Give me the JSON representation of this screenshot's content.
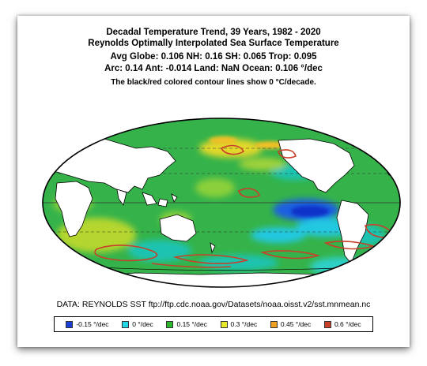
{
  "title": {
    "line1": "Decadal Temperature Trend, 39 Years, 1982 - 2020",
    "line2": "Reynolds Optimally Interpolated Sea Surface Temperature",
    "line3": "Avg Globe: 0.106  NH: 0.16  SH: 0.065  Trop: 0.095",
    "line4": "Arc: 0.14  Ant: -0.014  Land: NaN Ocean: 0.106 °/dec",
    "line5": "The black/red colored contour lines show 0 °C/decade."
  },
  "source": "DATA: REYNOLDS SST ftp://ftp.cdc.noaa.gov/Datasets/noaa.oisst.v2/sst.mnmean.nc",
  "legend": [
    {
      "label": "-0.15 °/dec",
      "color": "#1b3fd6"
    },
    {
      "label": "0 °/dec",
      "color": "#22d6e6"
    },
    {
      "label": "0.15 °/dec",
      "color": "#2fb62f"
    },
    {
      "label": "0.3 °/dec",
      "color": "#e8e82a"
    },
    {
      "label": "0.45 °/dec",
      "color": "#f0a020"
    },
    {
      "label": "0.6 °/dec",
      "color": "#c8402a"
    }
  ],
  "colors": {
    "ocean_base": "#35b34a",
    "land": "#ffffff",
    "contour": "#c8402a"
  }
}
